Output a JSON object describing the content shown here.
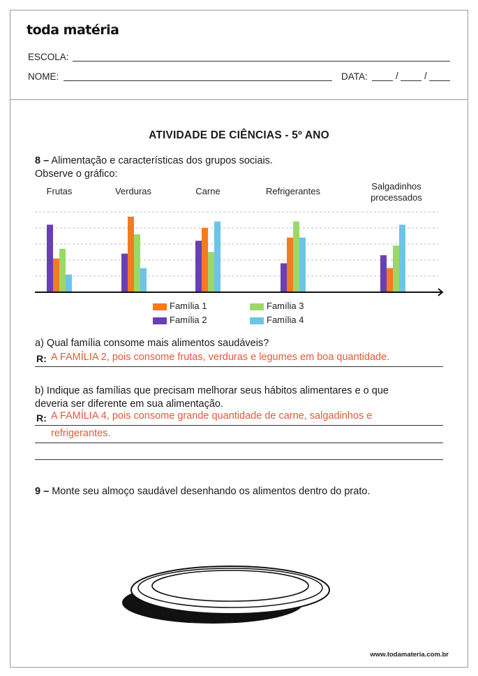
{
  "header": {
    "logo": "toda matéria",
    "school_label": "ESCOLA:",
    "name_label": "NOME:",
    "date_label": "DATA:",
    "date_sep": "/"
  },
  "title": "ATIVIDADE DE CIÊNCIAS - 5º ANO",
  "q8": {
    "number": "8 –",
    "text": "Alimentação e características dos grupos sociais.",
    "instruction": "Observe o gráfico:"
  },
  "chart_data": {
    "type": "bar",
    "categories": [
      "Frutas",
      "Verduras",
      "Carne",
      "Refrigerantes",
      "Salgadinhos processados"
    ],
    "category_lines": [
      [
        "Frutas"
      ],
      [
        "Verduras"
      ],
      [
        "Carne"
      ],
      [
        "Refrigerantes"
      ],
      [
        "Salgadinhos",
        "processados"
      ]
    ],
    "series": [
      {
        "name": "Família 1",
        "color": "#f47b20",
        "values": [
          2.1,
          4.7,
          4.0,
          3.4,
          1.5
        ]
      },
      {
        "name": "Família 2",
        "color": "#6a3fb5",
        "values": [
          4.2,
          2.4,
          3.2,
          1.8,
          2.3
        ]
      },
      {
        "name": "Família 3",
        "color": "#9bd868",
        "values": [
          2.7,
          3.6,
          2.5,
          4.4,
          2.9
        ]
      },
      {
        "name": "Família 4",
        "color": "#6cc4e6",
        "values": [
          1.1,
          1.5,
          4.4,
          3.4,
          4.2
        ]
      }
    ],
    "ylim": [
      0,
      5
    ],
    "grid": true,
    "legend": "bottom-center"
  },
  "qa": {
    "text": "a) Qual família consome mais alimentos saudáveis?",
    "r_label": "R:",
    "answer": "A FAMÍLIA 2, pois consome frutas, verduras e legumes em boa quantidade."
  },
  "qb": {
    "line1": "b) Indique as famílias que precisam melhorar seus hábitos alimentares e o que",
    "line2": "deveria ser diferente em sua alimentação.",
    "r_label": "R:",
    "answer_line1": "A FAMÍLIA 4, pois consome grande quantidade de carne, salgadinhos e",
    "answer_line2": "refrigerantes."
  },
  "q9": {
    "number": "9 –",
    "text": "Monte seu almoço saudável desenhando os alimentos dentro do prato."
  },
  "footer": "www.todamateria.com.br"
}
